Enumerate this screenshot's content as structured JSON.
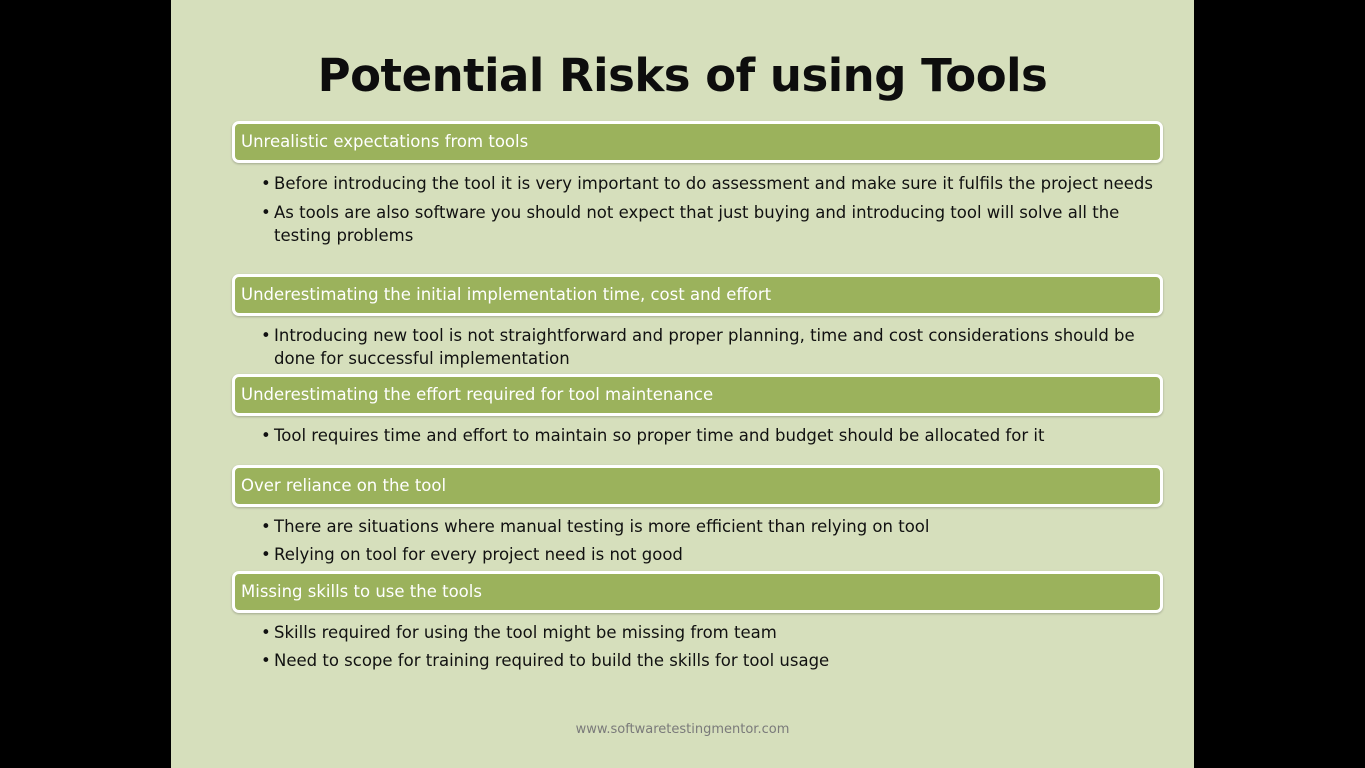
{
  "slide": {
    "title": "Potential Risks of using Tools",
    "footer": "www.softwaretestingmentor.com",
    "sections": [
      {
        "heading": "Unrealistic expectations from tools",
        "bullets": [
          "Before introducing the tool it is very important to do assessment and make sure it fulfils the project needs",
          "As tools are also software you should not expect that just buying and introducing tool will solve all the testing problems"
        ]
      },
      {
        "heading": "Underestimating the initial implementation time, cost and effort",
        "bullets": [
          "Introducing new tool is not straightforward and proper planning, time and cost considerations should be done for successful implementation"
        ]
      },
      {
        "heading": "Underestimating the effort required for tool maintenance",
        "bullets": [
          "Tool requires time and effort to maintain so proper time and budget should be allocated for it"
        ]
      },
      {
        "heading": "Over reliance on the tool",
        "bullets": [
          "There are situations where manual testing is more efficient than relying on tool",
          "Relying on tool for every project need is not good"
        ]
      },
      {
        "heading": "Missing skills to use the tools",
        "bullets": [
          "Skills required for using the tool might be missing from team",
          "Need to scope for training required to build the skills for tool usage"
        ]
      }
    ],
    "bullet_symbol": "•",
    "colors": {
      "background": "#d6dfbc",
      "section_bar": "#9bb25c",
      "section_border": "#ffffff",
      "title_text": "#0d0d0d"
    }
  }
}
